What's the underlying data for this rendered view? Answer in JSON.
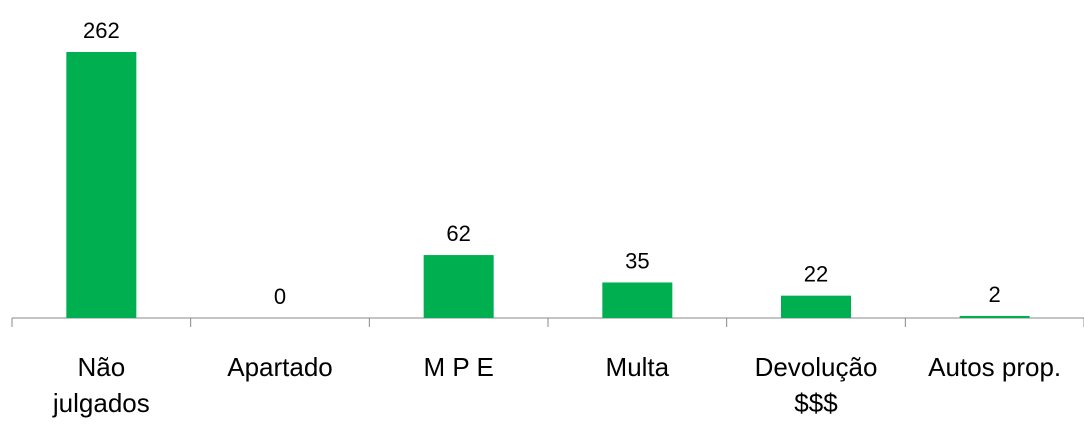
{
  "chart_data": {
    "type": "bar",
    "categories": [
      "Não\njulgados",
      "Apartado",
      "M P E",
      "Multa",
      "Devolução\n$$$",
      "Autos prop."
    ],
    "values": [
      262,
      0,
      62,
      35,
      22,
      2
    ],
    "color": "#00b050"
  }
}
